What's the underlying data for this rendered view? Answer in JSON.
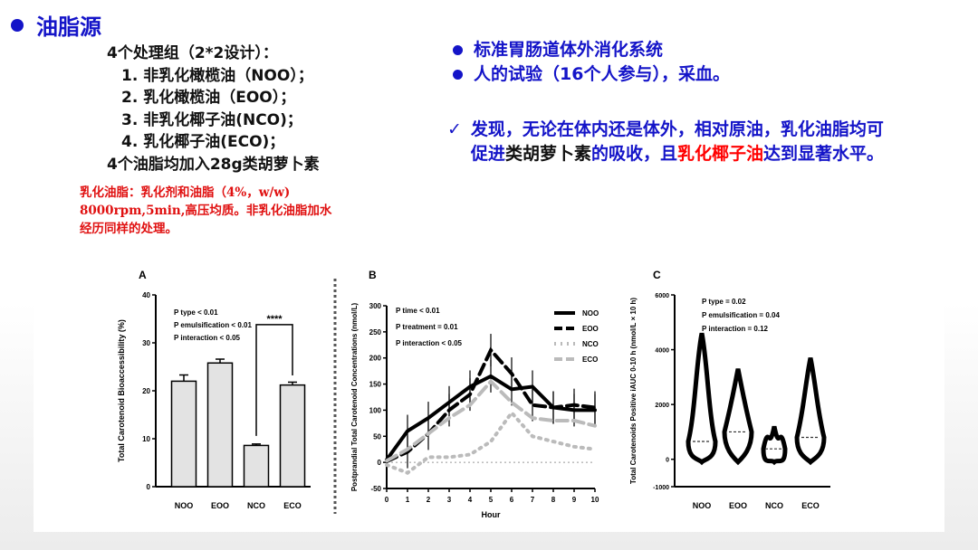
{
  "header": {
    "title": "油脂源"
  },
  "design": {
    "heading": "4个处理组（2*2设计）：",
    "items": [
      "1. 非乳化橄榄油（NOO）；",
      "2. 乳化橄榄油（EOO）；",
      "3. 非乳化椰子油(NCO)；",
      "4. 乳化椰子油(ECO)；"
    ],
    "footer": "4个油脂均加入28g类胡萝卜素"
  },
  "note": {
    "lines": [
      "乳化油脂：乳化剂和油脂（4%，w/w)",
      "8000rpm,5min,高压均质。非乳化油脂加水",
      "经历同样的处理。"
    ]
  },
  "bullets": [
    "标准胃肠道体外消化系统",
    "人的试验（16个人参与），采血。"
  ],
  "finding": {
    "check": "✓",
    "part1": "发现，无论在体内还是体外，相对原油，乳化油脂均可促进",
    "part2": "类胡萝卜素",
    "part3": "的吸收，且",
    "part4": "乳化椰子油",
    "part5": "达到显著水平。"
  },
  "colors": {
    "accent": "#1414c8",
    "alert": "#ff0000"
  },
  "chart_data": [
    {
      "panel": "A",
      "type": "bar",
      "categories": [
        "NOO",
        "EOO",
        "NCO",
        "ECO"
      ],
      "values": [
        22,
        25.8,
        8.6,
        21.2
      ],
      "errors": [
        1.3,
        0.8,
        0.3,
        0.6
      ],
      "ylabel": "Total Carotenoid Bioaccessibility (%)",
      "ylim": [
        0,
        40
      ],
      "yticks": [
        0,
        10,
        20,
        30,
        40
      ],
      "stats": [
        "P type < 0.01",
        "P emulsification < 0.01",
        "P interaction < 0.05"
      ],
      "significance": "****"
    },
    {
      "panel": "B",
      "type": "line",
      "xlabel": "Hour",
      "ylabel": "Postprandial Total Carotenoid Concentrations (nmol/L)",
      "x": [
        0,
        1,
        2,
        3,
        4,
        5,
        6,
        7,
        8,
        9,
        10
      ],
      "ylim": [
        -50,
        300
      ],
      "yticks": [
        -50,
        0,
        50,
        100,
        150,
        200,
        250,
        300
      ],
      "series": [
        {
          "name": "NOO",
          "values": [
            5,
            60,
            85,
            115,
            145,
            165,
            140,
            145,
            105,
            100,
            100
          ]
        },
        {
          "name": "EOO",
          "values": [
            2,
            20,
            55,
            100,
            130,
            215,
            170,
            110,
            105,
            110,
            105
          ]
        },
        {
          "name": "NCO",
          "values": [
            -5,
            -20,
            10,
            10,
            15,
            40,
            95,
            50,
            40,
            30,
            25
          ]
        },
        {
          "name": "ECO",
          "values": [
            3,
            25,
            55,
            85,
            110,
            155,
            115,
            85,
            80,
            80,
            70
          ]
        }
      ],
      "stats": [
        "P time < 0.01",
        "P treatment = 0.01",
        "P interaction < 0.05"
      ]
    },
    {
      "panel": "C",
      "type": "violin",
      "categories": [
        "NOO",
        "EOO",
        "NCO",
        "ECO"
      ],
      "ylabel": "Total Carotenoids Positive iAUC 0-10 h (nmol/L × 10 h)",
      "ylim": [
        -1000,
        6000
      ],
      "yticks": [
        -1000,
        0,
        2000,
        4000,
        6000
      ],
      "medians": [
        650,
        1000,
        380,
        800
      ],
      "max": [
        4600,
        3300,
        1200,
        3700
      ],
      "stats": [
        "P type = 0.02",
        "P emulsification = 0.04",
        "P interaction = 0.12"
      ]
    }
  ]
}
